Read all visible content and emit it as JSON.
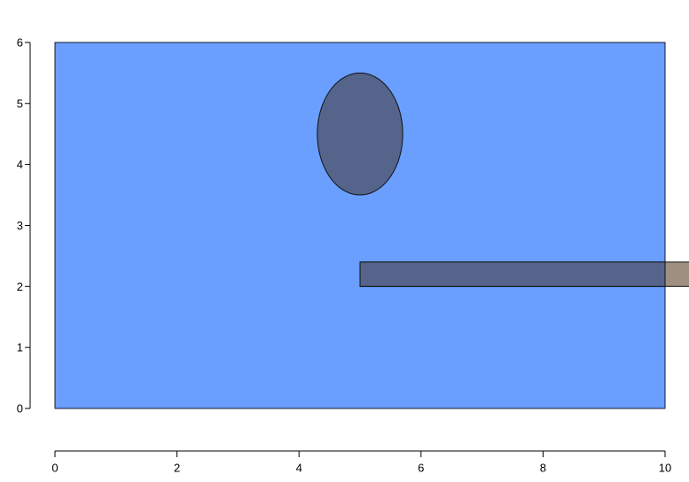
{
  "chart_data": {
    "type": "shapes",
    "title": "",
    "xlabel": "",
    "ylabel": "",
    "xlim": [
      0,
      10
    ],
    "ylim": [
      -0.7,
      6
    ],
    "x_ticks": [
      0,
      2,
      4,
      6,
      8,
      10
    ],
    "y_ticks": [
      0,
      1,
      2,
      3,
      4,
      5,
      6
    ],
    "x_tick_labels": [
      "0",
      "2",
      "4",
      "6",
      "8",
      "10"
    ],
    "y_tick_labels": [
      "0",
      "1",
      "2",
      "3",
      "4",
      "5",
      "6"
    ],
    "grid": false,
    "shapes": [
      {
        "name": "background-rectangle",
        "kind": "rect",
        "x0": 0,
        "y0": 0,
        "x1": 10,
        "y1": 6,
        "fill": "#6a9eff",
        "stroke": "#1a1a2e"
      },
      {
        "name": "ellipse",
        "kind": "ellipse",
        "cx": 5,
        "cy": 4.5,
        "rx": 0.7,
        "ry": 1,
        "fill": "#55648a",
        "stroke": "#111111"
      },
      {
        "name": "horizontal-bar",
        "kind": "rect",
        "x0": 5,
        "y0": 2,
        "x1": 10.4,
        "y1": 2.4,
        "fill": "#55648a",
        "overflow_fill": "#9e8f80",
        "stroke": "#111111"
      }
    ]
  }
}
